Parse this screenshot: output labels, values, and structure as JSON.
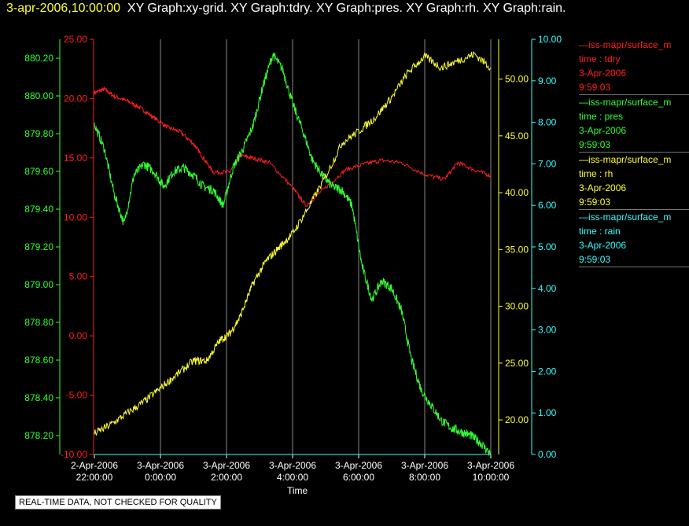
{
  "header": {
    "datetime": "3-apr-2006,10:00:00",
    "graphs": "XY Graph:xy-grid.  XY Graph:tdry.  XY Graph:pres.  XY Graph:rh.  XY Graph:rain."
  },
  "legend": [
    {
      "line1": "—iss-mapr/surface_m",
      "line2": "time : tdry",
      "line3": "3-Apr-2006",
      "line4": "9:59:03",
      "color": "#ff2020"
    },
    {
      "line1": "—iss-mapr/surface_m",
      "line2": "time : pres",
      "line3": "3-Apr-2006",
      "line4": "9:59:03",
      "color": "#33ff33"
    },
    {
      "line1": "—iss-mapr/surface_m",
      "line2": "time : rh",
      "line3": "3-Apr-2006",
      "line4": "9:59:03",
      "color": "#ffff33"
    },
    {
      "line1": "—iss-mapr/surface_m",
      "line2": "time : rain",
      "line3": "3-Apr-2006",
      "line4": "9:59:03",
      "color": "#33ffff"
    }
  ],
  "note": "REAL-TIME DATA, NOT CHECKED FOR QUALITY",
  "chart_data": {
    "type": "line",
    "xlabel": "Time",
    "x_ticks": [
      {
        "l1": "2-Apr-2006",
        "l2": "22:00:00"
      },
      {
        "l1": "3-Apr-2006",
        "l2": "0:00:00"
      },
      {
        "l1": "3-Apr-2006",
        "l2": "2:00:00"
      },
      {
        "l1": "3-Apr-2006",
        "l2": "4:00:00"
      },
      {
        "l1": "3-Apr-2006",
        "l2": "6:00:00"
      },
      {
        "l1": "3-Apr-2006",
        "l2": "8:00:00"
      },
      {
        "l1": "3-Apr-2006",
        "l2": "10:00:00"
      }
    ],
    "x_range_hours": [
      0,
      12
    ],
    "grid_vertical": true,
    "axes": {
      "pres": {
        "color": "#33ff33",
        "ylim": [
          878.1,
          880.3
        ],
        "ticks": [
          "880.20",
          "880.00",
          "879.80",
          "879.60",
          "879.40",
          "879.20",
          "879.00",
          "878.80",
          "878.60",
          "878.40",
          "878.20"
        ],
        "tick_values": [
          880.2,
          880.0,
          879.8,
          879.6,
          879.4,
          879.2,
          879.0,
          878.8,
          878.6,
          878.4,
          878.2
        ]
      },
      "tdry": {
        "color": "#ff2020",
        "ylim": [
          -10,
          25
        ],
        "ticks": [
          "25.00",
          "20.00",
          "15.00",
          "10.00",
          "5.00",
          "0.00",
          "-5.00",
          "-10.00"
        ],
        "tick_values": [
          25,
          20,
          15,
          10,
          5,
          0,
          -5,
          -10
        ]
      },
      "rh": {
        "color": "#ffff33",
        "ylim": [
          16.96,
          53.5
        ],
        "ticks": [
          "50.00",
          "45.00",
          "40.00",
          "35.00",
          "30.00",
          "25.00",
          "20.00"
        ],
        "tick_values": [
          50,
          45,
          40,
          35,
          30,
          25,
          20
        ]
      },
      "rain": {
        "color": "#33ffff",
        "ylim": [
          0,
          10
        ],
        "ticks": [
          "10.00",
          "9.00",
          "8.00",
          "7.00",
          "6.00",
          "5.00",
          "4.00",
          "3.00",
          "2.00",
          "1.00",
          "0.00"
        ],
        "tick_values": [
          10,
          9,
          8,
          7,
          6,
          5,
          4,
          3,
          2,
          1,
          0
        ]
      }
    },
    "series": [
      {
        "name": "tdry",
        "axis": "tdry",
        "color": "#ff2020",
        "x": [
          0,
          0.3,
          0.6,
          1,
          1.4,
          1.8,
          2.2,
          2.6,
          3,
          3.3,
          3.6,
          4.1,
          4.4,
          4.8,
          5.3,
          6,
          6.4,
          7,
          7.6,
          8.2,
          8.7,
          9.3,
          10,
          10.6,
          11,
          11.5,
          12
        ],
        "y": [
          20.5,
          20.8,
          20.2,
          19.8,
          19.2,
          18.4,
          17.6,
          17.2,
          16.2,
          15,
          13.8,
          13.8,
          15.2,
          15.0,
          14.6,
          12.5,
          11,
          12.5,
          14,
          14.5,
          14.8,
          14.6,
          13.6,
          13.2,
          14.6,
          14.0,
          13.5
        ]
      },
      {
        "name": "pres",
        "axis": "pres",
        "color": "#33ff33",
        "x": [
          0,
          0.3,
          0.6,
          0.9,
          1.2,
          1.5,
          1.8,
          2.1,
          2.4,
          2.7,
          3,
          3.3,
          3.6,
          3.9,
          4.2,
          4.5,
          4.8,
          5.1,
          5.4,
          5.7,
          6,
          6.3,
          6.6,
          6.9,
          7.2,
          7.5,
          7.8,
          8.1,
          8.4,
          8.7,
          9,
          9.3,
          9.6,
          9.9,
          10.2,
          10.5,
          10.8,
          11.1,
          11.4,
          11.7,
          12
        ],
        "y": [
          879.85,
          879.72,
          879.48,
          879.32,
          879.58,
          879.64,
          879.6,
          879.52,
          879.6,
          879.62,
          879.58,
          879.52,
          879.5,
          879.42,
          879.62,
          879.72,
          879.84,
          880.05,
          880.22,
          880.14,
          879.96,
          879.82,
          879.66,
          879.58,
          879.52,
          879.5,
          879.42,
          879.1,
          878.92,
          879.02,
          878.98,
          878.86,
          878.6,
          878.44,
          878.36,
          878.28,
          878.24,
          878.22,
          878.2,
          878.16,
          878.1
        ]
      },
      {
        "name": "rh",
        "axis": "rh",
        "color": "#ffff33",
        "x": [
          0,
          0.5,
          1,
          1.5,
          2,
          2.5,
          3,
          3.4,
          3.8,
          4.1,
          4.4,
          4.8,
          5.2,
          5.6,
          6,
          6.5,
          7,
          7.5,
          8,
          8.5,
          9,
          9.5,
          10,
          10.5,
          11,
          11.5,
          12
        ],
        "y": [
          18.8,
          19.6,
          20.6,
          21.6,
          22.8,
          24.0,
          25.2,
          25.2,
          27.0,
          27.6,
          29.0,
          32.0,
          34.0,
          35.2,
          36.4,
          38.8,
          41.4,
          44.4,
          45.4,
          46.6,
          48.4,
          50.6,
          52.0,
          51.0,
          51.6,
          52.2,
          51.0
        ]
      },
      {
        "name": "rain",
        "axis": "rain",
        "color": "#33ffff",
        "x": [
          0,
          12
        ],
        "y": [
          0,
          0
        ]
      }
    ]
  }
}
